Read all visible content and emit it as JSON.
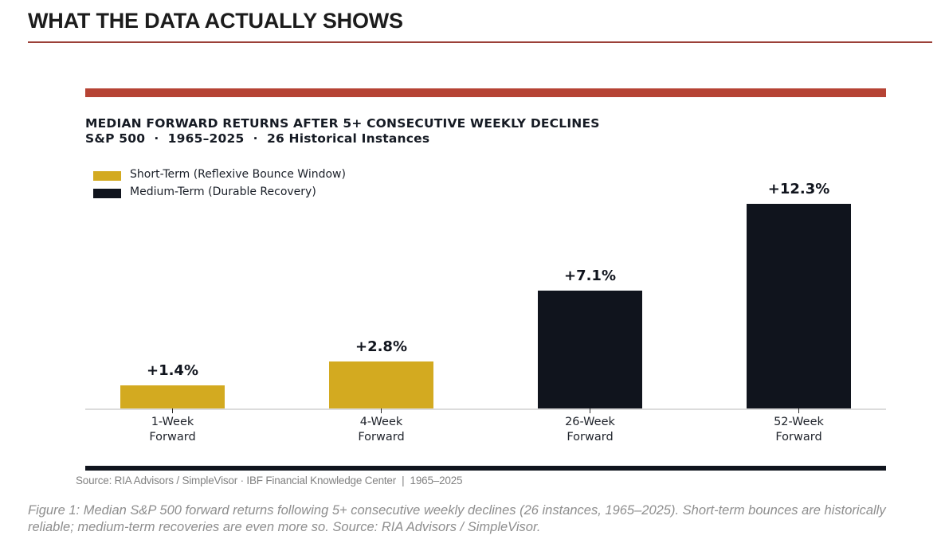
{
  "page": {
    "heading": "WHAT THE DATA ACTUALLY SHOWS",
    "caption": "Figure 1: Median S&P 500 forward returns following 5+ consecutive weekly declines (26 instances, 1965–2025). Short-term bounces are historically reliable; medium-term recoveries are even more so. Source: RIA Advisors / SimpleVisor."
  },
  "chart": {
    "title": "MEDIAN FORWARD RETURNS AFTER 5+ CONSECUTIVE WEEKLY DECLINES",
    "subtitle": "S&P 500  ·  1965–2025  ·  26 Historical Instances",
    "legend": [
      {
        "label": "Short-Term (Reflexive Bounce Window)",
        "color": "#d3aa20"
      },
      {
        "label": "Medium-Term (Durable Recovery)",
        "color": "#10141d"
      }
    ],
    "source": "Source: RIA Advisors / SimpleVisor · IBF Financial Knowledge Center  |  1965–2025"
  },
  "chart_data": {
    "type": "bar",
    "title": "MEDIAN FORWARD RETURNS AFTER 5+ CONSECUTIVE WEEKLY DECLINES",
    "subtitle": "S&P 500 · 1965–2025 · 26 Historical Instances",
    "categories": [
      "1-Week\nForward",
      "4-Week\nForward",
      "26-Week\nForward",
      "52-Week\nForward"
    ],
    "values": [
      1.4,
      2.8,
      7.1,
      12.3
    ],
    "value_labels": [
      "+1.4%",
      "+2.8%",
      "+7.1%",
      "+12.3%"
    ],
    "bar_colors": [
      "#d3aa20",
      "#d3aa20",
      "#10141d",
      "#10141d"
    ],
    "series_legend": [
      "Short-Term (Reflexive Bounce Window)",
      "Medium-Term (Durable Recovery)"
    ],
    "xlabel": "",
    "ylabel": "",
    "ylim": [
      0,
      13.5
    ],
    "grid": false,
    "legend_position": "upper-left",
    "accent_color": "#b64334",
    "axis_color": "#dcdcdc"
  }
}
